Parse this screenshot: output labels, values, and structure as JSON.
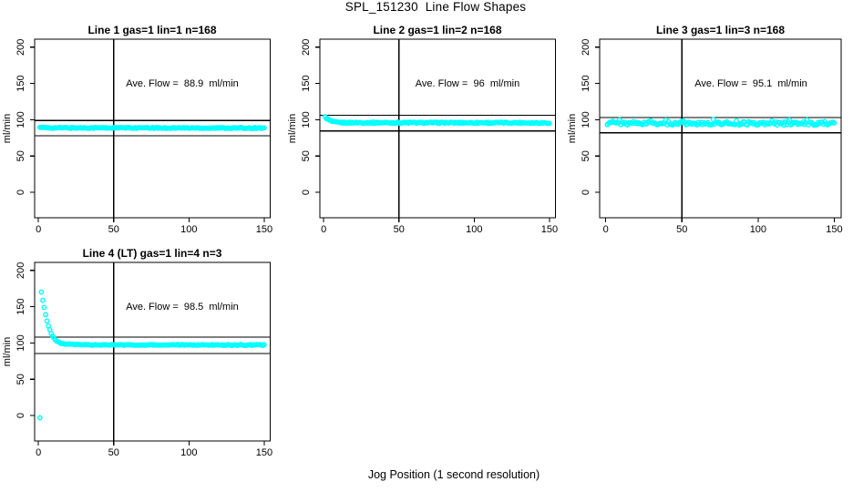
{
  "page": {
    "title": "SPL_151230  Line Flow Shapes",
    "x_axis_label": "Jog Position (1 second resolution)",
    "background": "#FFFFFF"
  },
  "colors": {
    "points": "#00FFFF",
    "axis": "#000000",
    "reference_lines": "#000000",
    "text": "#000000"
  },
  "chart_data": [
    {
      "type": "scatter",
      "title": "Line 1 gas=1 lin=1 n=168",
      "annotation": "Ave. Flow =  88.9  ml/min",
      "ave_flow_ml_min": 88.9,
      "n": 168,
      "xlabel": "",
      "ylabel": "ml/min",
      "x_ticks": [
        0,
        50,
        100,
        150
      ],
      "y_ticks": [
        0,
        50,
        100,
        150,
        200
      ],
      "xlim": [
        -2.5,
        154
      ],
      "ylim": [
        -35,
        211
      ],
      "vline_x": 50,
      "hlines": [
        99,
        78
      ],
      "x_start": 1,
      "x_end": 150,
      "n_points": 168,
      "profile": [
        [
          1,
          90.3
        ],
        [
          2,
          89.4
        ],
        [
          4,
          88.9
        ],
        [
          150,
          88.6
        ]
      ],
      "noise": 0.75,
      "outliers": []
    },
    {
      "type": "scatter",
      "title": "Line 2 gas=1 lin=2 n=168",
      "annotation": "Ave. Flow =  96  ml/min",
      "ave_flow_ml_min": 96,
      "n": 168,
      "xlabel": "",
      "ylabel": "ml/min",
      "x_ticks": [
        0,
        50,
        100,
        150
      ],
      "y_ticks": [
        0,
        50,
        100,
        150,
        200
      ],
      "xlim": [
        -2.5,
        154
      ],
      "ylim": [
        -35,
        211
      ],
      "vline_x": 50,
      "hlines": [
        106,
        84.5
      ],
      "x_start": 1,
      "x_end": 150,
      "n_points": 168,
      "profile": [
        [
          1,
          103.5
        ],
        [
          2,
          101.8
        ],
        [
          3,
          100.2
        ],
        [
          4,
          99.0
        ],
        [
          5,
          98.1
        ],
        [
          6,
          97.4
        ],
        [
          7,
          96.9
        ],
        [
          8,
          96.6
        ],
        [
          10,
          96.2
        ],
        [
          13,
          96.0
        ],
        [
          150,
          95.8
        ]
      ],
      "noise": 0.9,
      "outliers": []
    },
    {
      "type": "scatter",
      "title": "Line 3 gas=1 lin=3 n=168",
      "annotation": "Ave. Flow =  95.1  ml/min",
      "ave_flow_ml_min": 95.1,
      "n": 168,
      "xlabel": "",
      "ylabel": "ml/min",
      "x_ticks": [
        0,
        50,
        100,
        150
      ],
      "y_ticks": [
        0,
        50,
        100,
        150,
        200
      ],
      "xlim": [
        -4,
        154.5
      ],
      "ylim": [
        -35,
        211
      ],
      "vline_x": 50,
      "hlines": [
        103,
        82
      ],
      "x_start": 1,
      "x_end": 150,
      "n_points": 168,
      "profile": [
        [
          1,
          95.2
        ],
        [
          150,
          94.8
        ]
      ],
      "noise": 2.3,
      "spikes": true,
      "outliers": []
    },
    {
      "type": "scatter",
      "title": "Line 4 (LT) gas=1 lin=4 n=3",
      "annotation": "Ave. Flow =  98.5  ml/min",
      "ave_flow_ml_min": 98.5,
      "n": 3,
      "xlabel": "",
      "ylabel": "ml/min",
      "x_ticks": [
        0,
        50,
        100,
        150
      ],
      "y_ticks": [
        0,
        50,
        100,
        150,
        200
      ],
      "xlim": [
        -2.5,
        154
      ],
      "ylim": [
        -35,
        211
      ],
      "vline_x": 50,
      "hlines": [
        108,
        85.5
      ],
      "x_start": 2,
      "x_end": 150,
      "n_points": 160,
      "profile": [
        [
          2,
          170
        ],
        [
          3,
          158
        ],
        [
          4,
          147
        ],
        [
          5,
          137
        ],
        [
          6,
          128.5
        ],
        [
          7,
          121.5
        ],
        [
          8,
          115.5
        ],
        [
          9,
          111
        ],
        [
          10,
          107.5
        ],
        [
          11,
          104.8
        ],
        [
          12,
          102.8
        ],
        [
          13,
          101.3
        ],
        [
          14,
          100.3
        ],
        [
          16,
          99.2
        ],
        [
          18,
          98.6
        ],
        [
          20,
          98.2
        ],
        [
          25,
          97.7
        ],
        [
          40,
          97.3
        ],
        [
          150,
          97.2
        ]
      ],
      "noise": 0.6,
      "outliers": [
        [
          1,
          -3
        ]
      ]
    }
  ]
}
